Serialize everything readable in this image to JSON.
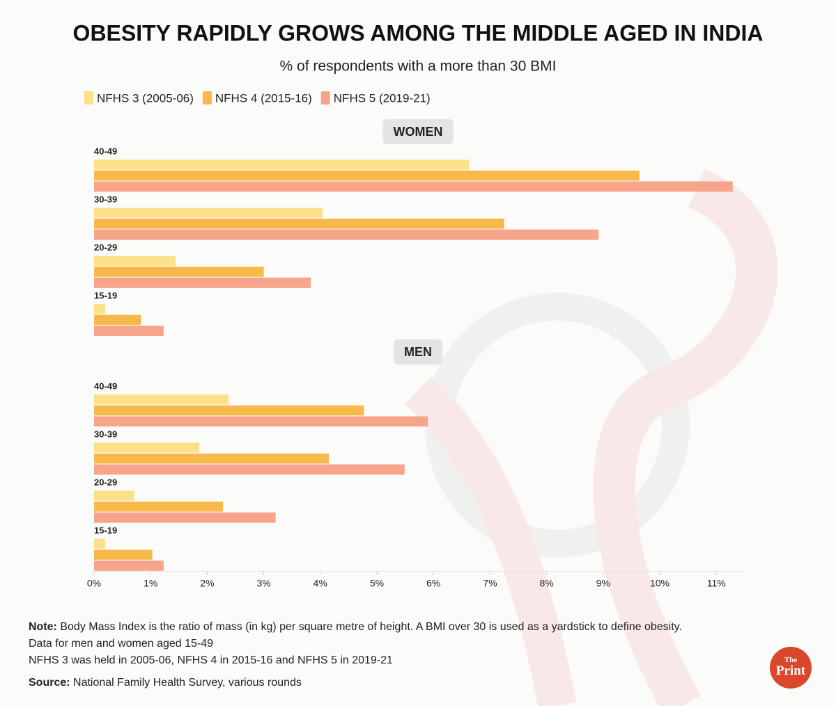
{
  "chart_data": [
    {
      "type": "hbar",
      "title": "WOMEN",
      "categories": [
        "40-49",
        "30-39",
        "20-29",
        "15-19"
      ],
      "series": [
        {
          "name": "NFHS 3 (2005-06)",
          "color": "#fce08a",
          "values": [
            6.63,
            4.04,
            1.44,
            0.2
          ]
        },
        {
          "name": "NFHS 4 (2015-16)",
          "color": "#f9b84a",
          "values": [
            9.64,
            7.25,
            3.0,
            0.83
          ]
        },
        {
          "name": "NFHS 5 (2019-21)",
          "color": "#f6a58a",
          "values": [
            11.29,
            8.92,
            3.83,
            1.23
          ]
        }
      ],
      "xlim": [
        0,
        11.5
      ]
    },
    {
      "type": "hbar",
      "title": "MEN",
      "categories": [
        "40-49",
        "30-39",
        "20-29",
        "15-19"
      ],
      "series": [
        {
          "color": "#fce08a",
          "values": [
            2.38,
            1.86,
            0.71,
            0.2
          ]
        },
        {
          "color": "#f9b84a",
          "values": [
            4.77,
            4.15,
            2.28,
            1.03
          ]
        },
        {
          "color": "#f6a58a",
          "values": [
            5.9,
            5.49,
            3.21,
            1.23
          ]
        }
      ],
      "xlim": [
        0,
        11.5
      ],
      "xticks": [
        {
          "value": 0,
          "label": "0%"
        },
        {
          "value": 1,
          "label": "1%"
        },
        {
          "value": 2,
          "label": "2%"
        },
        {
          "value": 3,
          "label": "3%"
        },
        {
          "value": 4,
          "label": "4%"
        },
        {
          "value": 5,
          "label": "5%"
        },
        {
          "value": 6,
          "label": "6%"
        },
        {
          "value": 7,
          "label": "7%"
        },
        {
          "value": 8,
          "label": "8%"
        },
        {
          "value": 9,
          "label": "9%"
        },
        {
          "value": 10,
          "label": "10%"
        },
        {
          "value": 11,
          "label": "11%"
        }
      ]
    }
  ],
  "header": {
    "title": "OBESITY RAPIDLY GROWS AMONG THE MIDDLE AGED IN INDIA",
    "subtitle": "% of respondents with a more than 30 BMI"
  },
  "notes": {
    "note_label": "Note:",
    "note_text": "Body Mass Index is the ratio of mass (in kg) per square metre of height. A BMI over 30 is used as a yardstick to define obesity.",
    "line2": "Data for men and women aged 15-49",
    "line3": "NFHS 3 was held in 2005-06, NFHS 4 in 2015-16 and NFHS 5 in 2019-21",
    "source_label": "Source:",
    "source_text": "National Family Health Survey, various rounds"
  },
  "logo": {
    "top": "The",
    "bottom": "Print"
  }
}
